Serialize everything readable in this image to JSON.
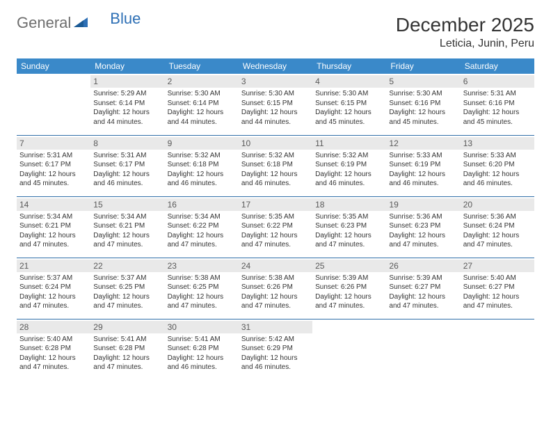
{
  "logo": {
    "general": "General",
    "blue": "Blue"
  },
  "title": "December 2025",
  "location": "Leticia, Junin, Peru",
  "colors": {
    "header_bg": "#3a89c9",
    "header_text": "#ffffff",
    "daynum_bg": "#e9e9e9",
    "daynum_text": "#5a5a5a",
    "row_border": "#2f6ea8",
    "body_text": "#333333",
    "logo_gray": "#6e6e6e",
    "logo_blue": "#2d6fb5"
  },
  "daysOfWeek": [
    "Sunday",
    "Monday",
    "Tuesday",
    "Wednesday",
    "Thursday",
    "Friday",
    "Saturday"
  ],
  "weeks": [
    [
      {
        "empty": true
      },
      {
        "n": "1",
        "sr": "Sunrise: 5:29 AM",
        "ss": "Sunset: 6:14 PM",
        "d1": "Daylight: 12 hours",
        "d2": "and 44 minutes."
      },
      {
        "n": "2",
        "sr": "Sunrise: 5:30 AM",
        "ss": "Sunset: 6:14 PM",
        "d1": "Daylight: 12 hours",
        "d2": "and 44 minutes."
      },
      {
        "n": "3",
        "sr": "Sunrise: 5:30 AM",
        "ss": "Sunset: 6:15 PM",
        "d1": "Daylight: 12 hours",
        "d2": "and 44 minutes."
      },
      {
        "n": "4",
        "sr": "Sunrise: 5:30 AM",
        "ss": "Sunset: 6:15 PM",
        "d1": "Daylight: 12 hours",
        "d2": "and 45 minutes."
      },
      {
        "n": "5",
        "sr": "Sunrise: 5:30 AM",
        "ss": "Sunset: 6:16 PM",
        "d1": "Daylight: 12 hours",
        "d2": "and 45 minutes."
      },
      {
        "n": "6",
        "sr": "Sunrise: 5:31 AM",
        "ss": "Sunset: 6:16 PM",
        "d1": "Daylight: 12 hours",
        "d2": "and 45 minutes."
      }
    ],
    [
      {
        "n": "7",
        "sr": "Sunrise: 5:31 AM",
        "ss": "Sunset: 6:17 PM",
        "d1": "Daylight: 12 hours",
        "d2": "and 45 minutes."
      },
      {
        "n": "8",
        "sr": "Sunrise: 5:31 AM",
        "ss": "Sunset: 6:17 PM",
        "d1": "Daylight: 12 hours",
        "d2": "and 46 minutes."
      },
      {
        "n": "9",
        "sr": "Sunrise: 5:32 AM",
        "ss": "Sunset: 6:18 PM",
        "d1": "Daylight: 12 hours",
        "d2": "and 46 minutes."
      },
      {
        "n": "10",
        "sr": "Sunrise: 5:32 AM",
        "ss": "Sunset: 6:18 PM",
        "d1": "Daylight: 12 hours",
        "d2": "and 46 minutes."
      },
      {
        "n": "11",
        "sr": "Sunrise: 5:32 AM",
        "ss": "Sunset: 6:19 PM",
        "d1": "Daylight: 12 hours",
        "d2": "and 46 minutes."
      },
      {
        "n": "12",
        "sr": "Sunrise: 5:33 AM",
        "ss": "Sunset: 6:19 PM",
        "d1": "Daylight: 12 hours",
        "d2": "and 46 minutes."
      },
      {
        "n": "13",
        "sr": "Sunrise: 5:33 AM",
        "ss": "Sunset: 6:20 PM",
        "d1": "Daylight: 12 hours",
        "d2": "and 46 minutes."
      }
    ],
    [
      {
        "n": "14",
        "sr": "Sunrise: 5:34 AM",
        "ss": "Sunset: 6:21 PM",
        "d1": "Daylight: 12 hours",
        "d2": "and 47 minutes."
      },
      {
        "n": "15",
        "sr": "Sunrise: 5:34 AM",
        "ss": "Sunset: 6:21 PM",
        "d1": "Daylight: 12 hours",
        "d2": "and 47 minutes."
      },
      {
        "n": "16",
        "sr": "Sunrise: 5:34 AM",
        "ss": "Sunset: 6:22 PM",
        "d1": "Daylight: 12 hours",
        "d2": "and 47 minutes."
      },
      {
        "n": "17",
        "sr": "Sunrise: 5:35 AM",
        "ss": "Sunset: 6:22 PM",
        "d1": "Daylight: 12 hours",
        "d2": "and 47 minutes."
      },
      {
        "n": "18",
        "sr": "Sunrise: 5:35 AM",
        "ss": "Sunset: 6:23 PM",
        "d1": "Daylight: 12 hours",
        "d2": "and 47 minutes."
      },
      {
        "n": "19",
        "sr": "Sunrise: 5:36 AM",
        "ss": "Sunset: 6:23 PM",
        "d1": "Daylight: 12 hours",
        "d2": "and 47 minutes."
      },
      {
        "n": "20",
        "sr": "Sunrise: 5:36 AM",
        "ss": "Sunset: 6:24 PM",
        "d1": "Daylight: 12 hours",
        "d2": "and 47 minutes."
      }
    ],
    [
      {
        "n": "21",
        "sr": "Sunrise: 5:37 AM",
        "ss": "Sunset: 6:24 PM",
        "d1": "Daylight: 12 hours",
        "d2": "and 47 minutes."
      },
      {
        "n": "22",
        "sr": "Sunrise: 5:37 AM",
        "ss": "Sunset: 6:25 PM",
        "d1": "Daylight: 12 hours",
        "d2": "and 47 minutes."
      },
      {
        "n": "23",
        "sr": "Sunrise: 5:38 AM",
        "ss": "Sunset: 6:25 PM",
        "d1": "Daylight: 12 hours",
        "d2": "and 47 minutes."
      },
      {
        "n": "24",
        "sr": "Sunrise: 5:38 AM",
        "ss": "Sunset: 6:26 PM",
        "d1": "Daylight: 12 hours",
        "d2": "and 47 minutes."
      },
      {
        "n": "25",
        "sr": "Sunrise: 5:39 AM",
        "ss": "Sunset: 6:26 PM",
        "d1": "Daylight: 12 hours",
        "d2": "and 47 minutes."
      },
      {
        "n": "26",
        "sr": "Sunrise: 5:39 AM",
        "ss": "Sunset: 6:27 PM",
        "d1": "Daylight: 12 hours",
        "d2": "and 47 minutes."
      },
      {
        "n": "27",
        "sr": "Sunrise: 5:40 AM",
        "ss": "Sunset: 6:27 PM",
        "d1": "Daylight: 12 hours",
        "d2": "and 47 minutes."
      }
    ],
    [
      {
        "n": "28",
        "sr": "Sunrise: 5:40 AM",
        "ss": "Sunset: 6:28 PM",
        "d1": "Daylight: 12 hours",
        "d2": "and 47 minutes."
      },
      {
        "n": "29",
        "sr": "Sunrise: 5:41 AM",
        "ss": "Sunset: 6:28 PM",
        "d1": "Daylight: 12 hours",
        "d2": "and 47 minutes."
      },
      {
        "n": "30",
        "sr": "Sunrise: 5:41 AM",
        "ss": "Sunset: 6:28 PM",
        "d1": "Daylight: 12 hours",
        "d2": "and 46 minutes."
      },
      {
        "n": "31",
        "sr": "Sunrise: 5:42 AM",
        "ss": "Sunset: 6:29 PM",
        "d1": "Daylight: 12 hours",
        "d2": "and 46 minutes."
      },
      {
        "empty": true
      },
      {
        "empty": true
      },
      {
        "empty": true
      }
    ]
  ]
}
